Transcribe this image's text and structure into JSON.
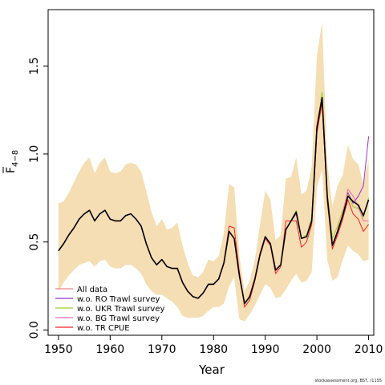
{
  "chart_data": {
    "type": "line",
    "xlabel": "Year",
    "ylabel_base": "F",
    "ylabel_sub": "4−8",
    "xlim": [
      1948,
      2011
    ],
    "ylim": [
      -0.03,
      1.82
    ],
    "xticks": [
      1950,
      1960,
      1970,
      1980,
      1990,
      2000,
      2010
    ],
    "yticks": [
      0.0,
      0.5,
      1.0,
      1.5
    ],
    "ytick_labels": [
      "0.0",
      "0.5",
      "1.0",
      "1.5"
    ],
    "x": [
      1950,
      1951,
      1952,
      1953,
      1954,
      1955,
      1956,
      1957,
      1958,
      1959,
      1960,
      1961,
      1962,
      1963,
      1964,
      1965,
      1966,
      1967,
      1968,
      1969,
      1970,
      1971,
      1972,
      1973,
      1974,
      1975,
      1976,
      1977,
      1978,
      1979,
      1980,
      1981,
      1982,
      1983,
      1984,
      1985,
      1986,
      1987,
      1988,
      1989,
      1990,
      1991,
      1992,
      1993,
      1994,
      1995,
      1996,
      1997,
      1998,
      1999,
      2000,
      2001,
      2002,
      2003,
      2004,
      2005,
      2006,
      2007,
      2008,
      2009,
      2010
    ],
    "band": {
      "color": "#f5deb3",
      "upper": [
        0.72,
        0.73,
        0.78,
        0.84,
        0.9,
        0.95,
        0.98,
        0.89,
        0.95,
        0.98,
        0.9,
        0.89,
        0.9,
        0.94,
        0.95,
        0.94,
        0.9,
        0.79,
        0.67,
        0.59,
        0.63,
        0.57,
        0.58,
        0.61,
        0.48,
        0.38,
        0.31,
        0.3,
        0.33,
        0.4,
        0.39,
        0.42,
        0.55,
        0.83,
        0.81,
        0.42,
        0.22,
        0.28,
        0.4,
        0.6,
        0.79,
        0.74,
        0.51,
        0.54,
        0.86,
        0.87,
        0.98,
        0.77,
        0.79,
        0.93,
        1.56,
        1.75,
        0.95,
        0.7,
        0.82,
        0.88,
        1.05,
        0.97,
        0.94,
        0.83,
        0.97
      ],
      "lower": [
        0.22,
        0.27,
        0.31,
        0.34,
        0.37,
        0.38,
        0.39,
        0.36,
        0.39,
        0.4,
        0.36,
        0.35,
        0.35,
        0.37,
        0.37,
        0.35,
        0.32,
        0.26,
        0.22,
        0.2,
        0.2,
        0.18,
        0.16,
        0.13,
        0.08,
        0.07,
        0.07,
        0.07,
        0.08,
        0.11,
        0.13,
        0.13,
        0.15,
        0.25,
        0.3,
        0.06,
        0.05,
        0.09,
        0.14,
        0.2,
        0.26,
        0.24,
        0.18,
        0.19,
        0.23,
        0.28,
        0.32,
        0.27,
        0.28,
        0.33,
        0.81,
        0.91,
        0.4,
        0.28,
        0.3,
        0.4,
        0.48,
        0.45,
        0.43,
        0.39,
        0.4
      ]
    },
    "series": [
      {
        "name": "All data",
        "color": "#f08080",
        "width": 1.2,
        "values": [
          0.45,
          0.49,
          0.54,
          0.58,
          0.63,
          0.66,
          0.68,
          0.62,
          0.66,
          0.68,
          0.63,
          0.62,
          0.62,
          0.65,
          0.66,
          0.63,
          0.59,
          0.49,
          0.41,
          0.37,
          0.4,
          0.36,
          0.35,
          0.35,
          0.27,
          0.22,
          0.19,
          0.18,
          0.21,
          0.26,
          0.26,
          0.29,
          0.38,
          0.56,
          0.52,
          0.31,
          0.15,
          0.19,
          0.29,
          0.43,
          0.53,
          0.49,
          0.34,
          0.37,
          0.57,
          0.62,
          0.67,
          0.52,
          0.53,
          0.62,
          1.15,
          1.32,
          0.76,
          0.48,
          0.56,
          0.65,
          0.76,
          0.73,
          0.71,
          0.65,
          0.74
        ]
      },
      {
        "name": "w.o. RO Trawl survey",
        "color": "#9932cc",
        "width": 1,
        "values": [
          0.45,
          0.49,
          0.54,
          0.58,
          0.63,
          0.66,
          0.68,
          0.62,
          0.66,
          0.68,
          0.63,
          0.62,
          0.62,
          0.65,
          0.66,
          0.63,
          0.59,
          0.49,
          0.41,
          0.37,
          0.4,
          0.36,
          0.35,
          0.35,
          0.27,
          0.22,
          0.19,
          0.18,
          0.21,
          0.26,
          0.26,
          0.29,
          0.38,
          0.56,
          0.52,
          0.31,
          0.15,
          0.19,
          0.29,
          0.43,
          0.53,
          0.49,
          0.34,
          0.37,
          0.57,
          0.62,
          0.66,
          0.52,
          0.53,
          0.62,
          1.16,
          1.32,
          0.76,
          0.48,
          0.55,
          0.65,
          0.78,
          0.72,
          0.76,
          0.82,
          1.1
        ]
      },
      {
        "name": "w.o. UKR Trawl survey",
        "color": "#9acd32",
        "width": 1,
        "values": [
          0.45,
          0.49,
          0.54,
          0.58,
          0.63,
          0.66,
          0.68,
          0.62,
          0.66,
          0.68,
          0.63,
          0.62,
          0.62,
          0.65,
          0.66,
          0.63,
          0.59,
          0.49,
          0.41,
          0.37,
          0.4,
          0.36,
          0.35,
          0.35,
          0.27,
          0.22,
          0.19,
          0.18,
          0.21,
          0.26,
          0.26,
          0.29,
          0.38,
          0.56,
          0.52,
          0.31,
          0.15,
          0.18,
          0.28,
          0.43,
          0.53,
          0.49,
          0.34,
          0.37,
          0.57,
          0.62,
          0.68,
          0.52,
          0.54,
          0.64,
          1.16,
          1.35,
          0.78,
          0.52,
          0.59,
          0.68,
          0.77,
          0.7,
          0.69,
          0.64,
          0.75
        ]
      },
      {
        "name": "w.o. BG Trawl survey",
        "color": "#ff69b4",
        "width": 1,
        "values": [
          0.45,
          0.49,
          0.54,
          0.58,
          0.63,
          0.66,
          0.68,
          0.62,
          0.66,
          0.68,
          0.63,
          0.62,
          0.62,
          0.65,
          0.66,
          0.63,
          0.59,
          0.49,
          0.41,
          0.37,
          0.4,
          0.36,
          0.35,
          0.35,
          0.27,
          0.22,
          0.19,
          0.18,
          0.21,
          0.26,
          0.26,
          0.29,
          0.38,
          0.56,
          0.52,
          0.31,
          0.15,
          0.19,
          0.29,
          0.43,
          0.53,
          0.49,
          0.34,
          0.37,
          0.57,
          0.62,
          0.67,
          0.52,
          0.53,
          0.62,
          1.14,
          1.3,
          0.75,
          0.48,
          0.56,
          0.66,
          0.8,
          0.76,
          0.7,
          0.62,
          0.62
        ]
      },
      {
        "name": "w.o. TR CPUE",
        "color": "#ff2020",
        "width": 1,
        "values": [
          0.45,
          0.49,
          0.54,
          0.58,
          0.63,
          0.66,
          0.68,
          0.62,
          0.66,
          0.68,
          0.63,
          0.62,
          0.62,
          0.65,
          0.66,
          0.63,
          0.59,
          0.49,
          0.41,
          0.37,
          0.4,
          0.36,
          0.35,
          0.35,
          0.27,
          0.22,
          0.19,
          0.18,
          0.21,
          0.26,
          0.26,
          0.29,
          0.38,
          0.59,
          0.58,
          0.33,
          0.13,
          0.17,
          0.28,
          0.42,
          0.52,
          0.48,
          0.32,
          0.36,
          0.62,
          0.62,
          0.62,
          0.47,
          0.5,
          0.6,
          1.12,
          1.29,
          0.73,
          0.46,
          0.54,
          0.63,
          0.74,
          0.66,
          0.63,
          0.56,
          0.6
        ]
      },
      {
        "name": "",
        "color": "#000000",
        "width": 1.6,
        "values": [
          0.45,
          0.49,
          0.54,
          0.58,
          0.63,
          0.66,
          0.68,
          0.62,
          0.66,
          0.68,
          0.63,
          0.62,
          0.62,
          0.65,
          0.66,
          0.63,
          0.59,
          0.49,
          0.41,
          0.37,
          0.4,
          0.36,
          0.35,
          0.35,
          0.27,
          0.22,
          0.19,
          0.18,
          0.21,
          0.26,
          0.26,
          0.29,
          0.38,
          0.56,
          0.52,
          0.31,
          0.15,
          0.19,
          0.29,
          0.43,
          0.53,
          0.49,
          0.34,
          0.37,
          0.57,
          0.62,
          0.67,
          0.52,
          0.53,
          0.62,
          1.15,
          1.32,
          0.76,
          0.48,
          0.56,
          0.65,
          0.76,
          0.73,
          0.71,
          0.65,
          0.74
        ]
      }
    ],
    "legend": {
      "position": "bottom-left",
      "entries": [
        "All data",
        "w.o. RO Trawl survey",
        "w.o. UKR Trawl survey",
        "w.o. BG Trawl survey",
        "w.o. TR CPUE"
      ]
    }
  },
  "footer": "stockassessment.org, BST, r1155"
}
